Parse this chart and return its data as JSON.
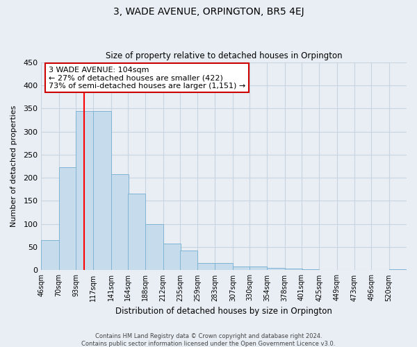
{
  "title": "3, WADE AVENUE, ORPINGTON, BR5 4EJ",
  "subtitle": "Size of property relative to detached houses in Orpington",
  "xlabel": "Distribution of detached houses by size in Orpington",
  "ylabel": "Number of detached properties",
  "bin_labels": [
    "46sqm",
    "70sqm",
    "93sqm",
    "117sqm",
    "141sqm",
    "164sqm",
    "188sqm",
    "212sqm",
    "235sqm",
    "259sqm",
    "283sqm",
    "307sqm",
    "330sqm",
    "354sqm",
    "378sqm",
    "401sqm",
    "425sqm",
    "449sqm",
    "473sqm",
    "496sqm",
    "520sqm"
  ],
  "bar_values": [
    65,
    222,
    345,
    345,
    207,
    165,
    100,
    57,
    42,
    15,
    15,
    8,
    8,
    5,
    3,
    2,
    1,
    0,
    0,
    0,
    2
  ],
  "bar_color": "#c6dcec",
  "bar_edge_color": "#7eb4d4",
  "property_line_x": 104,
  "bin_edges": [
    46,
    70,
    93,
    117,
    141,
    164,
    188,
    212,
    235,
    259,
    283,
    307,
    330,
    354,
    378,
    401,
    425,
    449,
    473,
    496,
    520
  ],
  "annotation_text": "3 WADE AVENUE: 104sqm\n← 27% of detached houses are smaller (422)\n73% of semi-detached houses are larger (1,151) →",
  "ylim": [
    0,
    450
  ],
  "yticks": [
    0,
    50,
    100,
    150,
    200,
    250,
    300,
    350,
    400,
    450
  ],
  "footer_line1": "Contains HM Land Registry data © Crown copyright and database right 2024.",
  "footer_line2": "Contains public sector information licensed under the Open Government Licence v3.0.",
  "background_color": "#e8eef4",
  "plot_bg_color": "#e8eef4",
  "grid_color": "#c8d4e0"
}
